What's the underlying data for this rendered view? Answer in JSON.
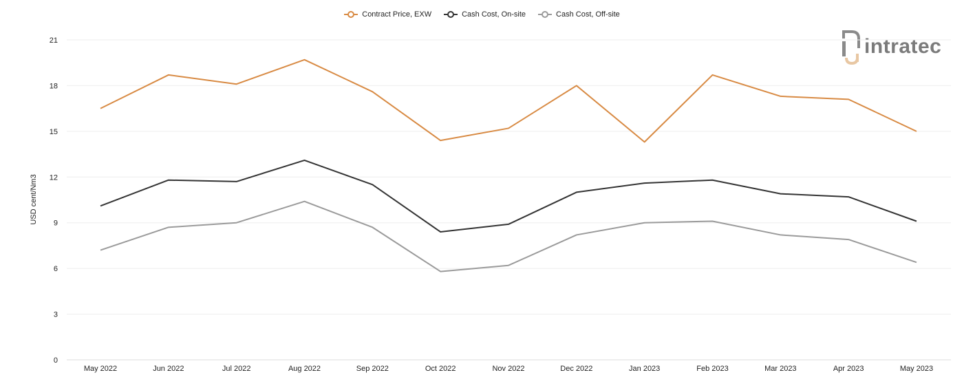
{
  "logo": {
    "text": "intratec"
  },
  "colors": {
    "series": [
      "#d88a43",
      "#333333",
      "#9a9a9a"
    ],
    "grid": "#eeeeee",
    "logo_accent": "#e8c7a3"
  },
  "chart_data": {
    "type": "line",
    "title": "",
    "xlabel": "",
    "ylabel": "USD cent/Nm3",
    "ylim": [
      0,
      21
    ],
    "yticks": [
      0,
      3,
      6,
      9,
      12,
      15,
      18,
      21
    ],
    "grid": true,
    "legend_position": "top-center",
    "categories": [
      "May 2022",
      "Jun 2022",
      "Jul 2022",
      "Aug 2022",
      "Sep 2022",
      "Oct 2022",
      "Nov 2022",
      "Dec 2022",
      "Jan 2023",
      "Feb 2023",
      "Mar 2023",
      "Apr 2023",
      "May 2023"
    ],
    "series": [
      {
        "name": "Contract Price, EXW",
        "values": [
          16.5,
          18.7,
          18.1,
          19.7,
          17.6,
          14.4,
          15.2,
          18.0,
          14.3,
          18.7,
          17.3,
          17.1,
          15.0
        ]
      },
      {
        "name": "Cash Cost, On-site",
        "values": [
          10.1,
          11.8,
          11.7,
          13.1,
          11.5,
          8.4,
          8.9,
          11.0,
          11.6,
          11.8,
          10.9,
          10.7,
          9.1
        ]
      },
      {
        "name": "Cash Cost, Off-site",
        "values": [
          7.2,
          8.7,
          9.0,
          10.4,
          8.7,
          5.8,
          6.2,
          8.2,
          9.0,
          9.1,
          8.2,
          7.9,
          6.4
        ]
      }
    ]
  }
}
